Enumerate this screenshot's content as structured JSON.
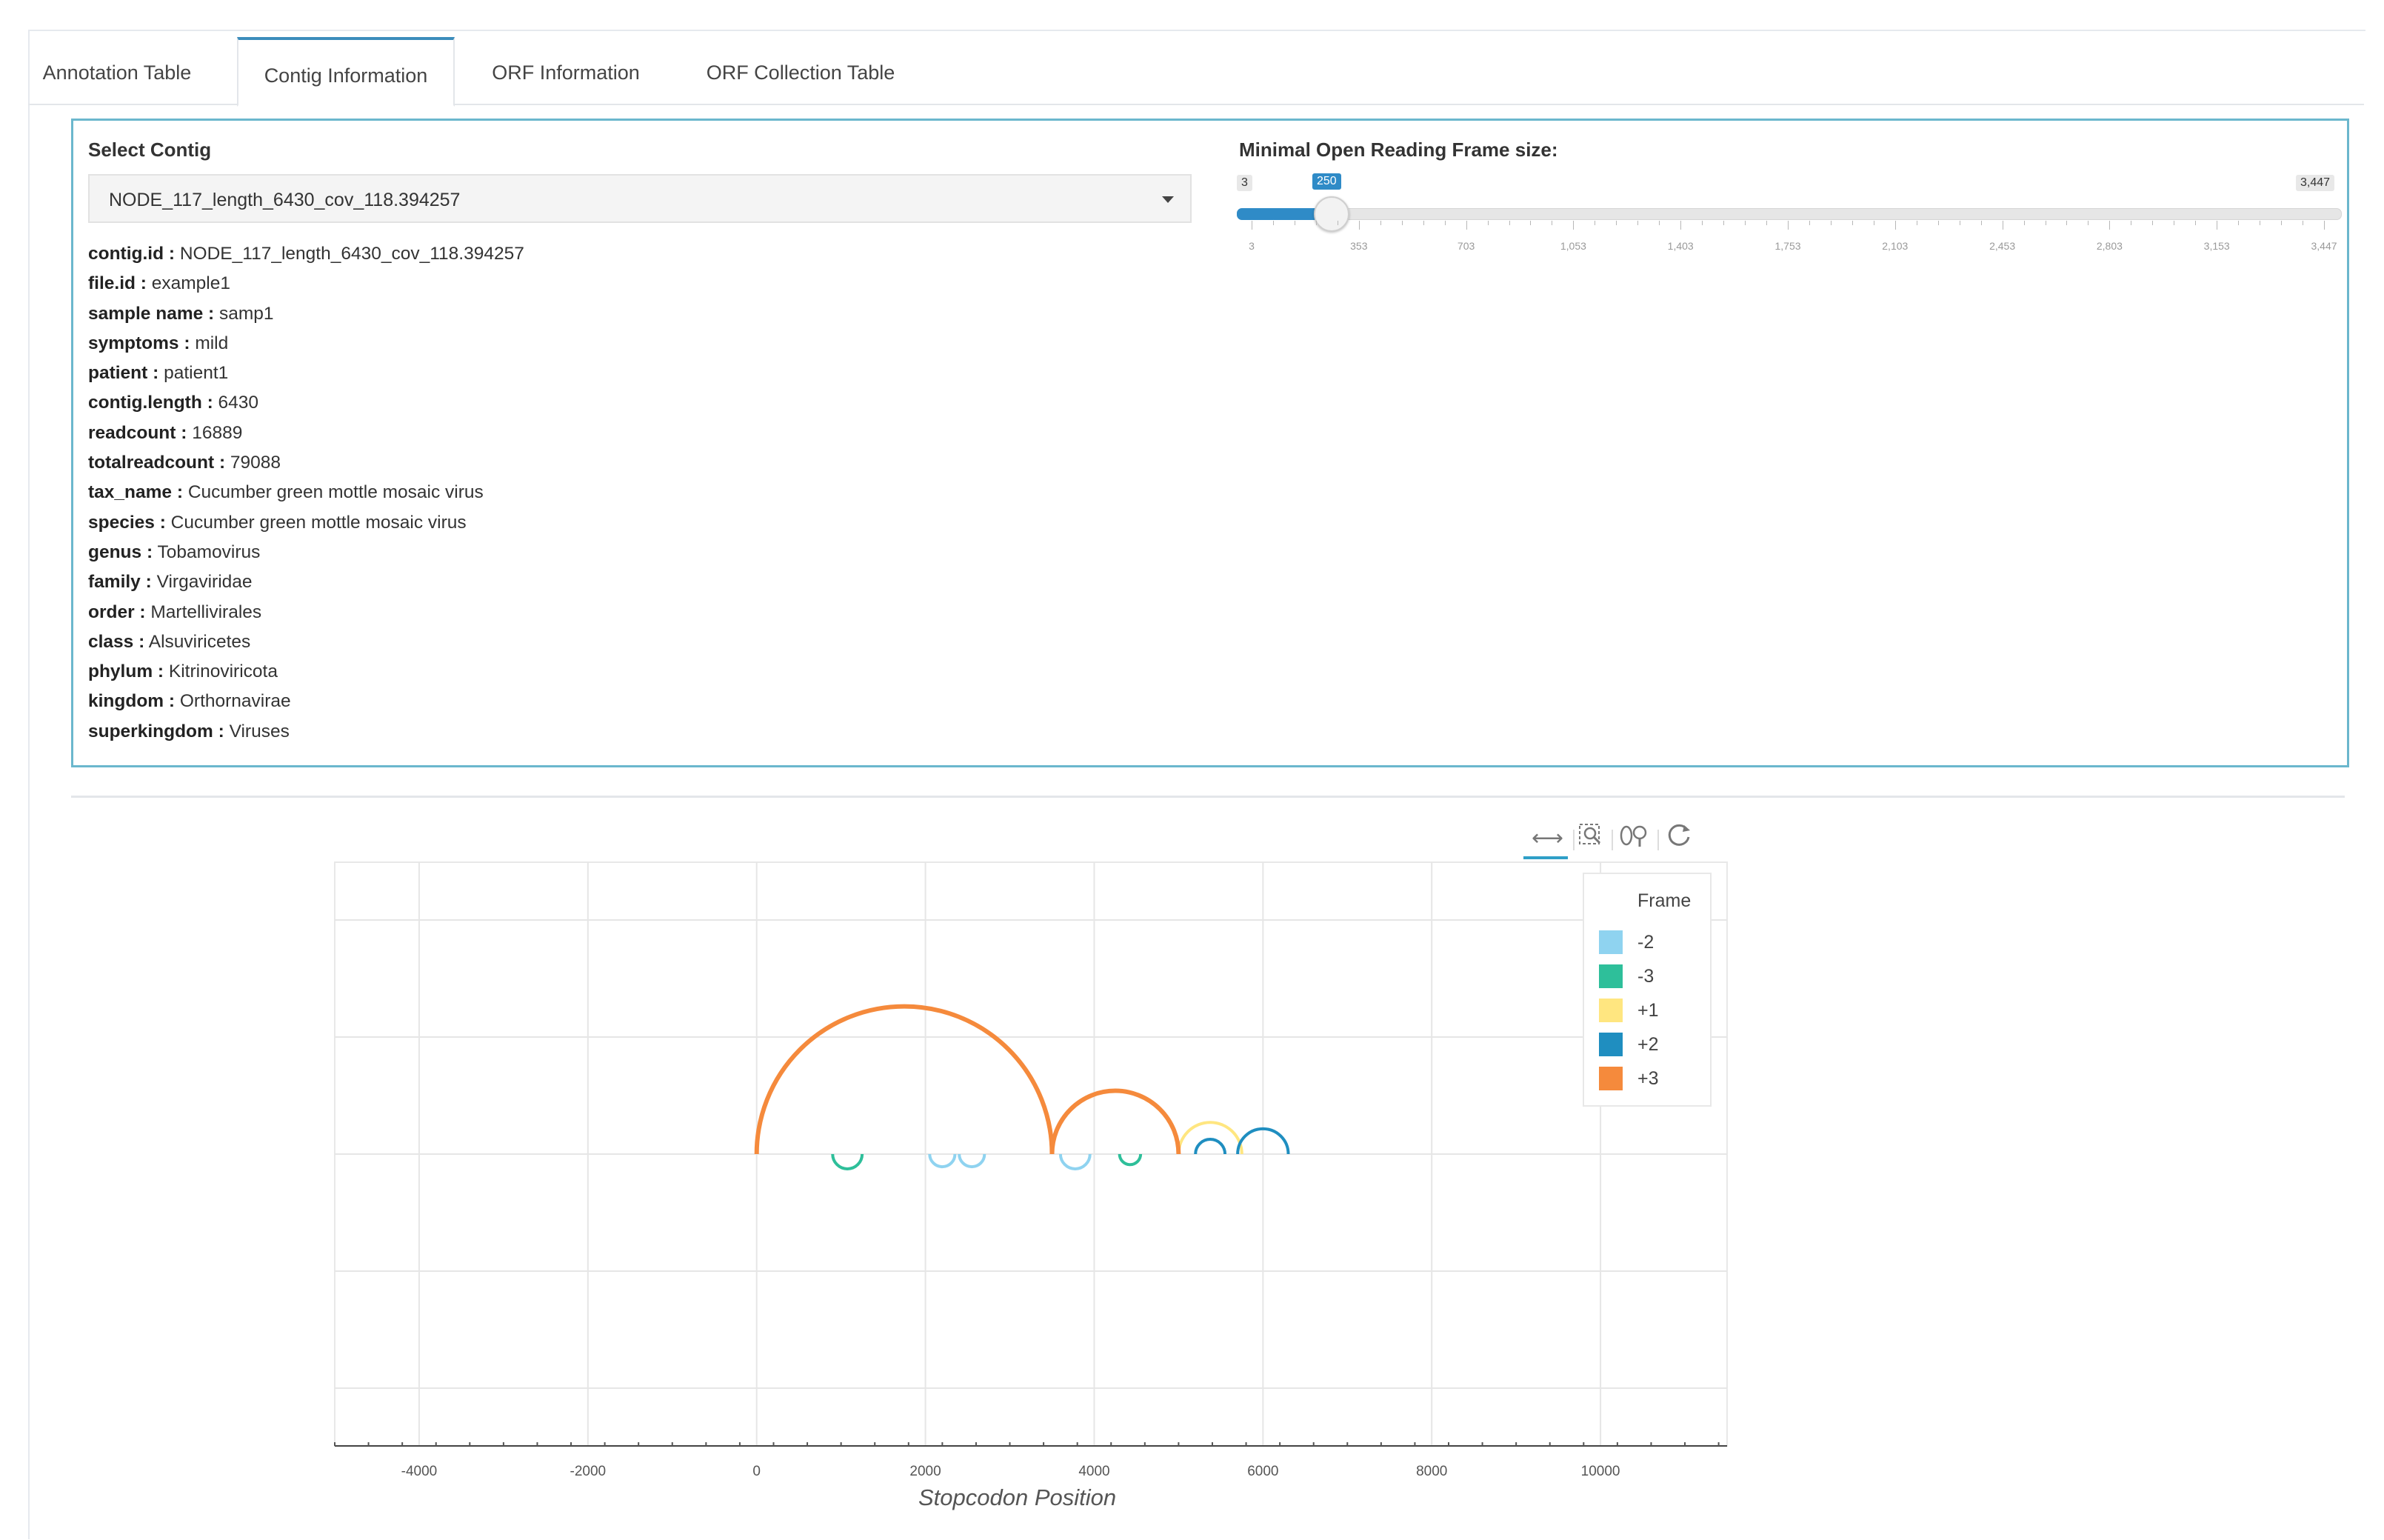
{
  "tabs": [
    {
      "label": "Annotation Table"
    },
    {
      "label": "Contig Information"
    },
    {
      "label": "ORF Information"
    },
    {
      "label": "ORF Collection Table"
    }
  ],
  "contig_select": {
    "label": "Select Contig",
    "value": "NODE_117_length_6430_cov_118.394257"
  },
  "orf_slider": {
    "label": "Minimal Open Reading Frame size:",
    "min": 3,
    "max": 3447,
    "value": 250,
    "min_label": "3",
    "value_label": "250",
    "max_label": "3,447",
    "ticks": [
      "3",
      "353",
      "703",
      "1,053",
      "1,403",
      "1,753",
      "2,103",
      "2,453",
      "2,803",
      "3,153",
      "3,447"
    ]
  },
  "contig_info": [
    {
      "key": "contig.id :",
      "value": "NODE_117_length_6430_cov_118.394257"
    },
    {
      "key": "file.id :",
      "value": "example1"
    },
    {
      "key": "sample name :",
      "value": "samp1"
    },
    {
      "key": "symptoms :",
      "value": "mild"
    },
    {
      "key": "patient :",
      "value": "patient1"
    },
    {
      "key": "contig.length :",
      "value": "6430"
    },
    {
      "key": "readcount :",
      "value": "16889"
    },
    {
      "key": "totalreadcount :",
      "value": "79088"
    },
    {
      "key": "tax_name :",
      "value": "Cucumber green mottle mosaic virus"
    },
    {
      "key": "species :",
      "value": "Cucumber green mottle mosaic virus"
    },
    {
      "key": "genus :",
      "value": "Tobamovirus"
    },
    {
      "key": "family :",
      "value": "Virgaviridae"
    },
    {
      "key": "order :",
      "value": "Martellivirales"
    },
    {
      "key": "class :",
      "value": "Alsuviricetes"
    },
    {
      "key": "phylum :",
      "value": "Kitrinoviricota"
    },
    {
      "key": "kingdom :",
      "value": "Orthornavirae"
    },
    {
      "key": "superkingdom :",
      "value": "Viruses"
    }
  ],
  "toolbar": {
    "icons": [
      "pan-icon",
      "box-zoom-icon",
      "wheel-zoom-icon",
      "reset-icon"
    ]
  },
  "chart_data": {
    "type": "arc",
    "xlabel": "Stopcodon Position",
    "ylabel": "",
    "xlim": [
      -5000,
      11500
    ],
    "ylim": [
      -2.5,
      2.5
    ],
    "x_ticks": [
      -4000,
      -2000,
      0,
      2000,
      4000,
      6000,
      8000,
      10000
    ],
    "x_tick_labels": [
      "-4000",
      "-2000",
      "0",
      "2000",
      "4000",
      "6000",
      "8000",
      "10000"
    ],
    "grid": true,
    "legend": {
      "title": "Frame",
      "position": "top-right"
    },
    "series": [
      {
        "name": "-2",
        "color": "#8fd3f0",
        "arcs": [
          [
            2050,
            2350
          ],
          [
            2400,
            2700
          ],
          [
            3600,
            3950
          ]
        ],
        "direction": "down"
      },
      {
        "name": "-3",
        "color": "#2ebf9a",
        "arcs": [
          [
            900,
            1250
          ],
          [
            4300,
            4550
          ]
        ],
        "direction": "down"
      },
      {
        "name": "+1",
        "color": "#ffe680",
        "arcs": [
          [
            5000,
            5750
          ]
        ],
        "direction": "up"
      },
      {
        "name": "+2",
        "color": "#1f8ec0",
        "arcs": [
          [
            5200,
            5550
          ],
          [
            5700,
            6300
          ]
        ],
        "direction": "up"
      },
      {
        "name": "+3",
        "color": "#f58a3c",
        "arcs": [
          [
            0,
            3500
          ],
          [
            3500,
            5000
          ]
        ],
        "direction": "up"
      }
    ]
  }
}
